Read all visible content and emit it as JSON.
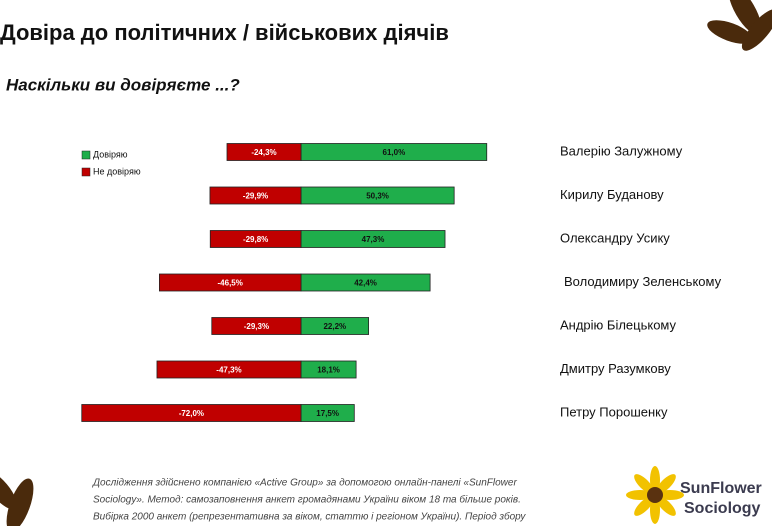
{
  "chart_data": {
    "type": "diverging-bar",
    "title": "Довіра до політичних / військових діячів",
    "subtitle": "Наскільки ви довіряєте ...?",
    "categories": [
      "Валерію Залужному",
      "Кирилу Буданову",
      "Олександру Усику",
      "Володимиру Зеленському",
      "Андрію Білецькому",
      "Дмитру Разумкову",
      "Петру Порошенку"
    ],
    "series": [
      {
        "name": "Довіряю",
        "color": "#1fae4b",
        "values": [
          61.0,
          50.3,
          47.3,
          42.4,
          22.2,
          18.1,
          17.5
        ],
        "value_labels": [
          "61,0%",
          "50,3%",
          "47,3%",
          "42,4%",
          "22,2%",
          "18,1%",
          "17,5%"
        ]
      },
      {
        "name": "Не довіряю",
        "color": "#c00000",
        "values": [
          -24.3,
          -29.9,
          -29.8,
          -46.5,
          -29.3,
          -47.3,
          -72.0
        ],
        "value_labels": [
          "-24,3%",
          "-29,9%",
          "-29,8%",
          "-46,5%",
          "-29,3%",
          "-47,3%",
          "-72,0%"
        ]
      }
    ],
    "footnote": [
      "Дослідження здійснено компанією «Active Group» за допомогою онлайн-панелі «SunFlower",
      "Sociology». Метод: самозаповнення анкет громадянами України віком 18 та більше років.",
      "Вибірка 2000 анкет (репрезентативна за віком, статтю і регіоном України). Період збору"
    ],
    "logo": [
      "SunFlower",
      "Sociology"
    ]
  }
}
